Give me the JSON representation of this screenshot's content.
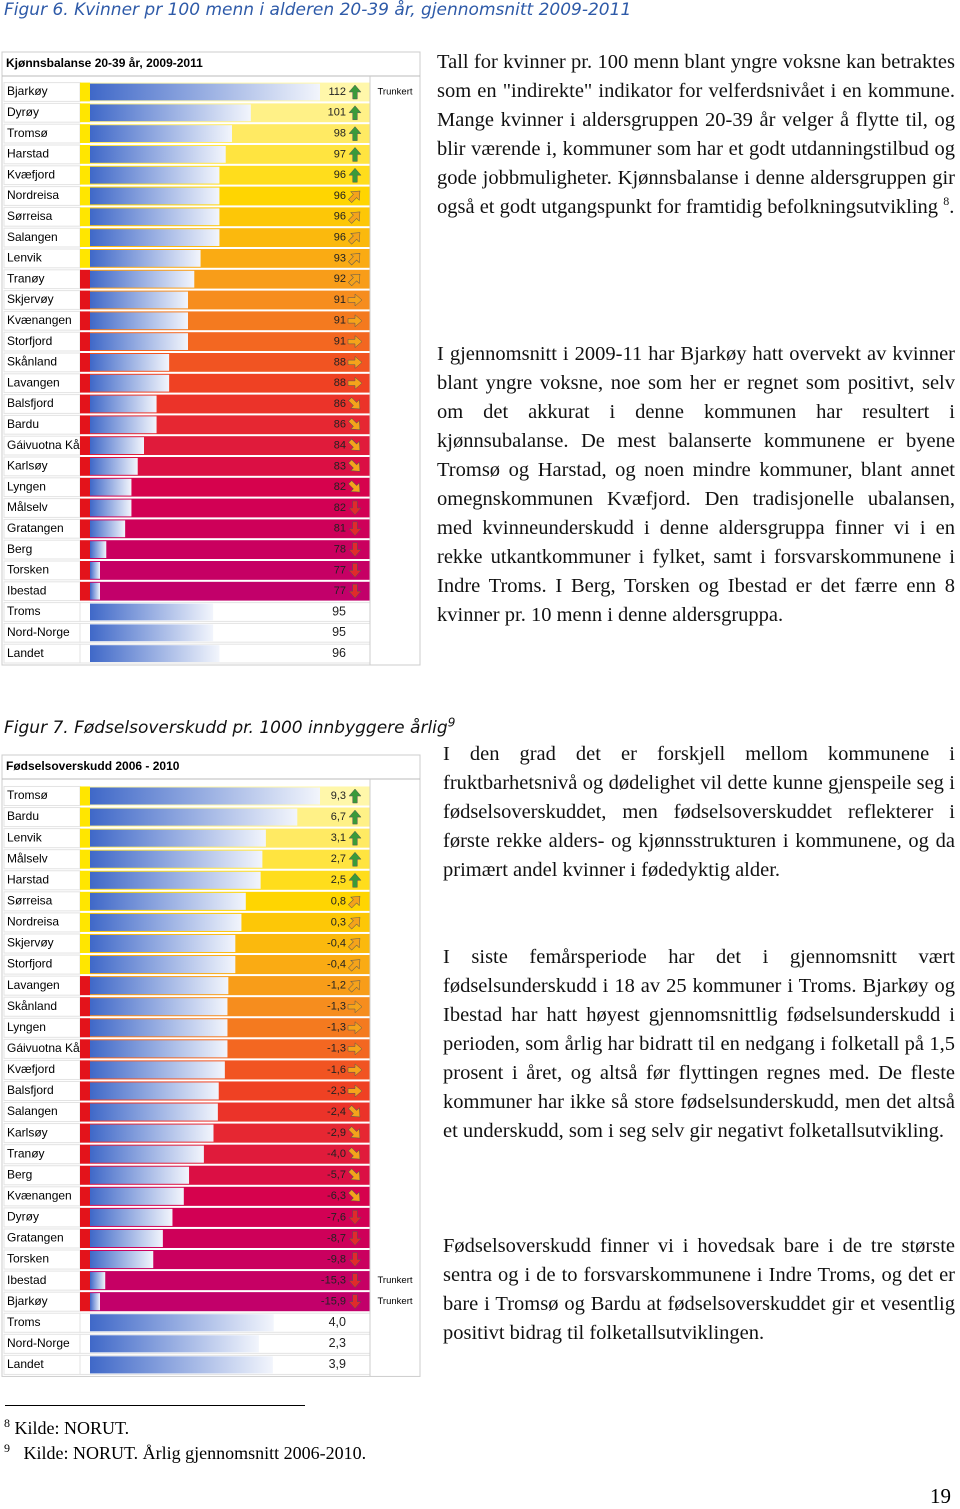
{
  "figure6": {
    "caption": "Figur 6. Kvinner pr 100 menn i alderen 20-39 år, gjennomsnitt 2009-2011",
    "table_title": "Kjønnsbalanse 20-39 år, 2009-2011",
    "rows": [
      {
        "name": "Bjarkøy",
        "value": 112,
        "note": "Trunkert"
      },
      {
        "name": "Dyrøy",
        "value": 101
      },
      {
        "name": "Tromsø",
        "value": 98
      },
      {
        "name": "Harstad",
        "value": 97
      },
      {
        "name": "Kvæfjord",
        "value": 96
      },
      {
        "name": "Nordreisa",
        "value": 96
      },
      {
        "name": "Sørreisa",
        "value": 96
      },
      {
        "name": "Salangen",
        "value": 96
      },
      {
        "name": "Lenvik",
        "value": 93
      },
      {
        "name": "Tranøy",
        "value": 92
      },
      {
        "name": "Skjervøy",
        "value": 91
      },
      {
        "name": "Kvænangen",
        "value": 91
      },
      {
        "name": "Storfjord",
        "value": 91
      },
      {
        "name": "Skånland",
        "value": 88
      },
      {
        "name": "Lavangen",
        "value": 88
      },
      {
        "name": "Balsfjord",
        "value": 86
      },
      {
        "name": "Bardu",
        "value": 86
      },
      {
        "name": "Gáivuotna Kåf",
        "value": 84
      },
      {
        "name": "Karlsøy",
        "value": 83
      },
      {
        "name": "Lyngen",
        "value": 82
      },
      {
        "name": "Målselv",
        "value": 82
      },
      {
        "name": "Gratangen",
        "value": 81
      },
      {
        "name": "Berg",
        "value": 78
      },
      {
        "name": "Torsken",
        "value": 77
      },
      {
        "name": "Ibestad",
        "value": 77
      }
    ],
    "summary_rows": [
      {
        "name": "Troms",
        "value": 95
      },
      {
        "name": "Nord-Norge",
        "value": 95
      },
      {
        "name": "Landet",
        "value": 96
      }
    ]
  },
  "figure7": {
    "caption": "Figur 7. Fødselsoverskudd pr. 1000 innbyggere årlig",
    "caption_sup": "9",
    "table_title": "Fødselsoverskudd 2006 - 2010",
    "rows": [
      {
        "name": "Tromsø",
        "value": 9.3,
        "label": "9,3"
      },
      {
        "name": "Bardu",
        "value": 6.7,
        "label": "6,7"
      },
      {
        "name": "Lenvik",
        "value": 3.1,
        "label": "3,1"
      },
      {
        "name": "Målselv",
        "value": 2.7,
        "label": "2,7"
      },
      {
        "name": "Harstad",
        "value": 2.5,
        "label": "2,5"
      },
      {
        "name": "Sørreisa",
        "value": 0.8,
        "label": "0,8"
      },
      {
        "name": "Nordreisa",
        "value": 0.3,
        "label": "0,3"
      },
      {
        "name": "Skjervøy",
        "value": -0.4,
        "label": "-0,4"
      },
      {
        "name": "Storfjord",
        "value": -0.4,
        "label": "-0,4"
      },
      {
        "name": "Lavangen",
        "value": -1.2,
        "label": "-1,2"
      },
      {
        "name": "Skånland",
        "value": -1.3,
        "label": "-1,3"
      },
      {
        "name": "Lyngen",
        "value": -1.3,
        "label": "-1,3"
      },
      {
        "name": "Gáivuotna Kåf",
        "value": -1.3,
        "label": "-1,3"
      },
      {
        "name": "Kvæfjord",
        "value": -1.6,
        "label": "-1,6"
      },
      {
        "name": "Balsfjord",
        "value": -2.3,
        "label": "-2,3"
      },
      {
        "name": "Salangen",
        "value": -2.4,
        "label": "-2,4"
      },
      {
        "name": "Karlsøy",
        "value": -2.9,
        "label": "-2,9"
      },
      {
        "name": "Tranøy",
        "value": -4.0,
        "label": "-4,0"
      },
      {
        "name": "Berg",
        "value": -5.7,
        "label": "-5,7"
      },
      {
        "name": "Kvænangen",
        "value": -6.3,
        "label": "-6,3"
      },
      {
        "name": "Dyrøy",
        "value": -7.6,
        "label": "-7,6"
      },
      {
        "name": "Gratangen",
        "value": -8.7,
        "label": "-8,7"
      },
      {
        "name": "Torsken",
        "value": -9.8,
        "label": "-9,8"
      },
      {
        "name": "Ibestad",
        "value": -15.3,
        "label": "-15,3",
        "note": "Trunkert"
      },
      {
        "name": "Bjarkøy",
        "value": -15.9,
        "label": "-15,9",
        "note": "Trunkert"
      }
    ],
    "summary_rows": [
      {
        "name": "Troms",
        "value": 4.0,
        "label": "4,0"
      },
      {
        "name": "Nord-Norge",
        "value": 2.3,
        "label": "2,3"
      },
      {
        "name": "Landet",
        "value": 3.9,
        "label": "3,9"
      }
    ]
  },
  "paragraphs": [
    {
      "text": "Tall for kvinner pr. 100 menn blant yngre voksne kan betraktes som en \"indirekte\" indikator for velferdsnivået i en kommune. Mange kvinner i aldersgruppen 20-39 år velger å flytte til, og blir værende i, kommuner som har et godt utdanningstilbud og gode jobbmuligheter. Kjønnsbalanse i denne aldersgruppen gir også et godt utgangspunkt for framtidig befolkningsutvikling",
      "sup": "8",
      "after": "."
    },
    {
      "text": "I gjennomsnitt i 2009-11 har Bjarkøy hatt overvekt av kvinner blant yngre voksne, noe som her er regnet som positivt, selv om det akkurat i denne kommunen har resultert i kjønnsubalanse. De mest balanserte kommunene er byene Tromsø og Harstad, og noen mindre kommuner, blant annet omegnskommunen Kvæfjord. Den tradisjonelle ubalansen, med kvinneunderskudd i denne aldersgruppa finner vi i en rekke utkantkommuner i fylket, samt i forsvarskommunene i Indre Troms. I Berg, Torsken og Ibestad er det færre enn 8 kvinner pr. 10 menn i denne aldersgruppa."
    },
    {
      "text": "I den grad det er forskjell mellom kommunene i fruktbarhetsnivå og dødelighet vil dette kunne gjenspeile seg i fødselsoverskuddet, men fødselsoverskuddet reflekterer i første rekke alders- og kjønnsstrukturen i kommunene, og da primært andel kvinner i fødedyktig alder."
    },
    {
      "text": "I siste femårsperiode har det i gjennomsnitt vært fødselsunderskudd i 18 av 25 kommuner i Troms. Bjarkøy og Ibestad har hatt høyest gjennomsnittlig fødselsunderskudd i perioden, som årlig har bidratt til en nedgang i folketall på 1,5 prosent i året, og altså før flyttingen regnes med. De fleste kommuner har ikke så store fødselsunderskudd, men det altså et underskudd, som i seg selv gir negativt folketallsutvikling."
    },
    {
      "text": "Fødselsoverskudd finner vi i hovedsak bare i de tre største sentra og i de to forsvarskommunene i Indre Troms, og det er bare i Tromsø og Bardu at fødselsoverskuddet gir et vesentlig positivt bidrag til folketallsutviklingen."
    }
  ],
  "footnotes": [
    {
      "mark": "8",
      "text": "Kilde: NORUT."
    },
    {
      "mark": "9",
      "text": "Kilde: NORUT. Årlig gjennomsnitt 2006-2010."
    }
  ],
  "page_number": "19"
}
